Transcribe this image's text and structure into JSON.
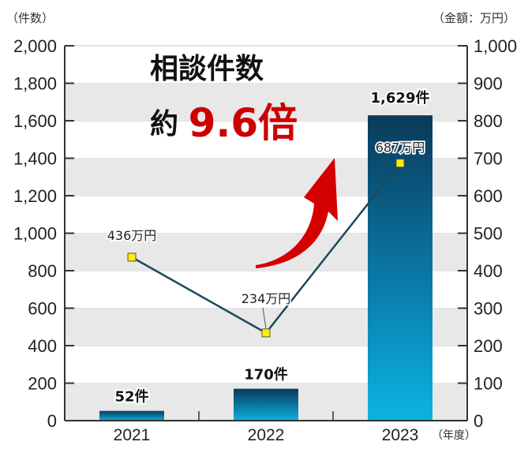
{
  "chart_data": {
    "type": "bar+line",
    "title": "相談件数 約9.6倍",
    "headline": {
      "line1": "相談件数",
      "line2_prefix": "約",
      "line2_highlight": "9.6倍"
    },
    "categories": [
      "2021",
      "2022",
      "2023"
    ],
    "xlabel": "（年度）",
    "left_axis": {
      "label": "（件数）",
      "ylim": [
        0,
        2000
      ],
      "ticks": [
        "0",
        "200",
        "400",
        "600",
        "800",
        "1,000",
        "1,200",
        "1,400",
        "1,600",
        "1,800",
        "2,000"
      ]
    },
    "right_axis": {
      "label": "（金額：万円）",
      "ylim": [
        0,
        1000
      ],
      "ticks": [
        "0",
        "100",
        "200",
        "300",
        "400",
        "500",
        "600",
        "700",
        "800",
        "900",
        "1,000"
      ]
    },
    "series": [
      {
        "name": "相談件数",
        "type": "bar",
        "axis": "left",
        "values": [
          52,
          170,
          1629
        ],
        "labels": [
          "52件",
          "170件",
          "1,629件"
        ]
      },
      {
        "name": "金額",
        "type": "line",
        "axis": "right",
        "values": [
          436,
          234,
          687
        ],
        "labels": [
          "436万円",
          "234万円",
          "687万円"
        ]
      }
    ],
    "grid": "alternating horizontal bands",
    "annotations": [
      "red upward arrow"
    ],
    "colors": {
      "bar_top": "#0a3d5e",
      "bar_bottom": "#0bb0de",
      "line": "#1b4a5c",
      "marker": "#ffee00",
      "highlight": "#cc0000",
      "band": "#e8e8e8"
    }
  }
}
